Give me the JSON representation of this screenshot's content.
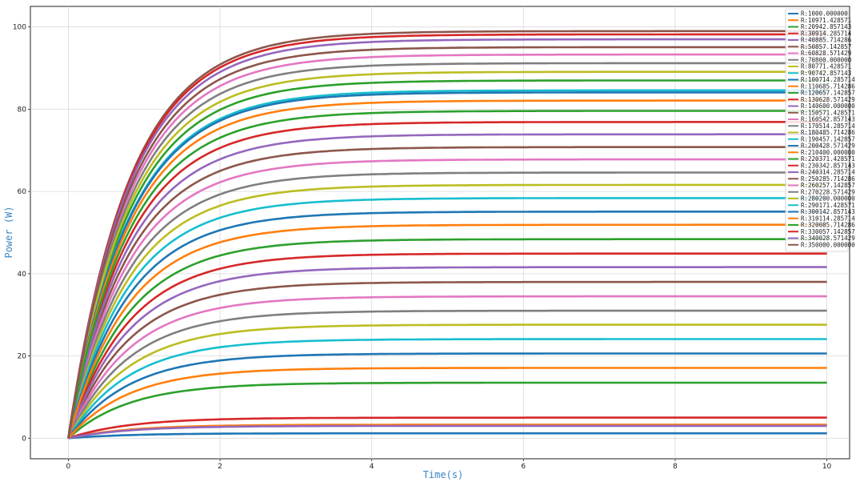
{
  "chart_data": {
    "type": "line",
    "title": "",
    "xlabel": "Time(s)",
    "ylabel": "Power (W)",
    "xlim": [
      -0.5,
      10.3
    ],
    "ylim": [
      -5,
      105
    ],
    "xticks": [
      0,
      2,
      4,
      6,
      8,
      10
    ],
    "yticks": [
      0,
      20,
      40,
      60,
      80,
      100
    ],
    "grid": true,
    "legend_position": "top-right",
    "rise_time_constant_s": 0.8,
    "colors": [
      "#1f77b4",
      "#ff7f0e",
      "#2ca02c",
      "#d62728",
      "#9467bd",
      "#8c564b",
      "#e377c2",
      "#7f7f7f",
      "#bcbd22",
      "#17becf"
    ],
    "series": [
      {
        "name": "R:1000.000000",
        "steady": 1.2
      },
      {
        "name": "R:10971.428571",
        "steady": 3.3
      },
      {
        "name": "R:20942.857143",
        "steady": 13.5
      },
      {
        "name": "R:30914.285714",
        "steady": 5.0
      },
      {
        "name": "R:40885.714286",
        "steady": 3.0
      },
      {
        "name": "R:50857.142857",
        "steady": 38.0
      },
      {
        "name": "R:60828.571429",
        "steady": 34.5
      },
      {
        "name": "R:70800.000000",
        "steady": 31.0
      },
      {
        "name": "R:80771.428571",
        "steady": 27.6
      },
      {
        "name": "R:90742.857143",
        "steady": 24.1
      },
      {
        "name": "R:100714.285714",
        "steady": 20.6
      },
      {
        "name": "R:110685.714286",
        "steady": 17.1
      },
      {
        "name": "R:120657.142857",
        "steady": 48.4
      },
      {
        "name": "R:130628.571429",
        "steady": 44.9
      },
      {
        "name": "R:140600.000000",
        "steady": 41.6
      },
      {
        "name": "R:150571.428571",
        "steady": 70.8
      },
      {
        "name": "R:160542.857143",
        "steady": 67.8
      },
      {
        "name": "R:170514.285714",
        "steady": 64.6
      },
      {
        "name": "R:180485.714286",
        "steady": 61.6
      },
      {
        "name": "R:190457.142857",
        "steady": 58.4
      },
      {
        "name": "R:200428.571429",
        "steady": 55.1
      },
      {
        "name": "R:210400.000000",
        "steady": 51.9
      },
      {
        "name": "R:220371.428571",
        "steady": 87.0
      },
      {
        "name": "R:230342.857143",
        "steady": 76.9
      },
      {
        "name": "R:240314.285714",
        "steady": 73.9
      },
      {
        "name": "R:250285.714286",
        "steady": 99.0
      },
      {
        "name": "R:260257.142857",
        "steady": 93.3
      },
      {
        "name": "R:270228.571429",
        "steady": 91.2
      },
      {
        "name": "R:280200.000000",
        "steady": 89.1
      },
      {
        "name": "R:290171.428571",
        "steady": 84.6
      },
      {
        "name": "R:300142.857143",
        "steady": 84.1
      },
      {
        "name": "R:310114.285714",
        "steady": 82.1
      },
      {
        "name": "R:320085.714286",
        "steady": 79.6
      },
      {
        "name": "R:330057.142857",
        "steady": 98.2
      },
      {
        "name": "R:340028.571429",
        "steady": 97.0
      },
      {
        "name": "R:350000.000000",
        "steady": 95.1
      }
    ]
  }
}
